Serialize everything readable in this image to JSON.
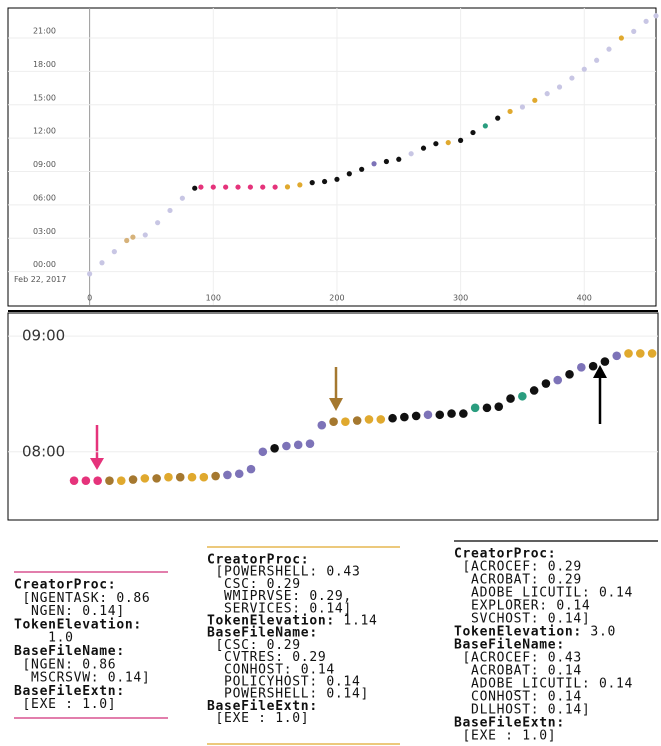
{
  "chart_data": [
    {
      "type": "scatter",
      "x": [
        0,
        10,
        20,
        30,
        35,
        45,
        55,
        65,
        75,
        85,
        90,
        100,
        110,
        120,
        130,
        140,
        150,
        160,
        170,
        180,
        190,
        200,
        210,
        220,
        230,
        240,
        250,
        260,
        270,
        280,
        290,
        300,
        310,
        320,
        330,
        340,
        350,
        360,
        370,
        380,
        390,
        400,
        410,
        420,
        430,
        440,
        450,
        458
      ],
      "values": [
        -0.2,
        0.8,
        1.8,
        2.8,
        3.1,
        3.3,
        4.4,
        5.5,
        6.6,
        7.5,
        7.6,
        7.6,
        7.6,
        7.6,
        7.6,
        7.6,
        7.6,
        7.62,
        7.8,
        8.0,
        8.1,
        8.3,
        8.8,
        9.2,
        9.7,
        9.9,
        10.1,
        10.6,
        11.1,
        11.5,
        11.6,
        11.8,
        12.5,
        13.1,
        13.8,
        14.4,
        14.8,
        15.4,
        16.0,
        16.6,
        17.4,
        18.2,
        19.0,
        20.0,
        21.0,
        21.6,
        22.5,
        23.0
      ],
      "colors": [
        "#c8c6e4",
        "#c8c6e4",
        "#c8c6e4",
        "#d6b27a",
        "#d6b27a",
        "#c8c6e4",
        "#c8c6e4",
        "#c8c6e4",
        "#c8c6e4",
        "#111111",
        "#e5337b",
        "#e5337b",
        "#e5337b",
        "#e5337b",
        "#e5337b",
        "#e5337b",
        "#e5337b",
        "#e0a92e",
        "#e0a92e",
        "#111111",
        "#111111",
        "#111111",
        "#111111",
        "#111111",
        "#7d73b8",
        "#111111",
        "#111111",
        "#c8c6e4",
        "#111111",
        "#111111",
        "#e0a92e",
        "#111111",
        "#111111",
        "#2a9d7f",
        "#111111",
        "#e0a92e",
        "#c8c6e4",
        "#e0a92e",
        "#c8c6e4",
        "#c8c6e4",
        "#c8c6e4",
        "#c8c6e4",
        "#c8c6e4",
        "#c8c6e4",
        "#e0a92e",
        "#c8c6e4",
        "#c8c6e4",
        "#c8c6e4"
      ],
      "xlim": [
        -66,
        458
      ],
      "ylim": [
        -3,
        23.7
      ],
      "xticks": [
        0,
        100,
        200,
        300,
        400
      ],
      "yticks": [
        {
          "value": 0,
          "label": "00:00"
        },
        {
          "value": 3,
          "label": "03:00"
        },
        {
          "value": 6,
          "label": "06:00"
        },
        {
          "value": 9,
          "label": "09:00"
        },
        {
          "value": 12,
          "label": "12:00"
        },
        {
          "value": 15,
          "label": "15:00"
        },
        {
          "value": 18,
          "label": "18:00"
        },
        {
          "value": 21,
          "label": "21:00"
        }
      ],
      "annotation": "Feb 22, 2017",
      "grid": true
    },
    {
      "type": "scatter",
      "x": [
        1,
        2,
        3,
        4,
        5,
        6,
        7,
        8,
        9,
        10,
        11,
        12,
        13,
        14,
        15,
        16,
        17,
        18,
        19,
        20,
        21,
        22,
        23,
        24,
        25,
        26,
        27,
        28,
        29,
        30,
        31,
        32,
        33,
        34,
        35,
        36,
        37,
        38,
        39,
        40,
        41,
        42,
        43,
        44,
        45,
        46,
        47,
        48,
        49,
        50
      ],
      "values": [
        7.75,
        7.75,
        7.75,
        7.75,
        7.75,
        7.76,
        7.77,
        7.77,
        7.78,
        7.78,
        7.78,
        7.78,
        7.79,
        7.8,
        7.81,
        7.85,
        8.0,
        8.03,
        8.05,
        8.06,
        8.07,
        8.23,
        8.26,
        8.26,
        8.27,
        8.28,
        8.28,
        8.29,
        8.3,
        8.31,
        8.32,
        8.32,
        8.33,
        8.33,
        8.38,
        8.38,
        8.39,
        8.46,
        8.48,
        8.53,
        8.59,
        8.62,
        8.67,
        8.73,
        8.74,
        8.78,
        8.83,
        8.85,
        8.85,
        8.85
      ],
      "colors": [
        "#e5337b",
        "#e5337b",
        "#e5337b",
        "#a5782f",
        "#e0a92e",
        "#a5782f",
        "#e0a92e",
        "#a5782f",
        "#e0a92e",
        "#a5782f",
        "#e0a92e",
        "#e0a92e",
        "#a5782f",
        "#7d73b8",
        "#7d73b8",
        "#7d73b8",
        "#7d73b8",
        "#111111",
        "#7d73b8",
        "#7d73b8",
        "#7d73b8",
        "#7d73b8",
        "#a5782f",
        "#e0a92e",
        "#a5782f",
        "#e0a92e",
        "#e0a92e",
        "#111111",
        "#111111",
        "#111111",
        "#7d73b8",
        "#111111",
        "#111111",
        "#111111",
        "#2a9d7f",
        "#111111",
        "#111111",
        "#111111",
        "#2a9d7f",
        "#111111",
        "#111111",
        "#7d73b8",
        "#111111",
        "#7d73b8",
        "#111111",
        "#111111",
        "#7d73b8",
        "#e0a92e",
        "#e0a92e",
        "#e0a92e"
      ],
      "xlim": [
        -4.6,
        50.5
      ],
      "ylim": [
        7.41,
        9.2
      ],
      "yticks": [
        {
          "value": 8,
          "label": "08:00"
        },
        {
          "value": 9,
          "label": "09:00"
        }
      ],
      "grid": true
    }
  ],
  "panels": [
    {
      "rule_color": "#d0307a",
      "fields": [
        {
          "name": "CreatorProc:",
          "values": [
            " [NGENTASK: 0.86",
            "  NGEN: 0.14]"
          ]
        },
        {
          "name": "TokenElevation:",
          "values": [
            "    1.0"
          ]
        },
        {
          "name": "BaseFileName:",
          "values": [
            " [NGEN: 0.86",
            "  MSCRSVW: 0.14]"
          ]
        },
        {
          "name": "BaseFileExtn:",
          "values": [
            " [EXE : 1.0]"
          ]
        }
      ]
    },
    {
      "rule_color": "#e0a92e",
      "fields": [
        {
          "name": "CreatorProc:",
          "values": [
            " [POWERSHELL: 0.43",
            "  CSC: 0.29",
            "  WMIPRVSE: 0.29,",
            "  SERVICES: 0.14]"
          ]
        },
        {
          "name": "TokenElevation:",
          "inline": true,
          "values": [
            " 1.14"
          ]
        },
        {
          "name": "BaseFileName:",
          "values": [
            " [CSC: 0.29",
            "  CVTRES: 0.29",
            "  CONHOST: 0.14",
            "  POLICYHOST: 0.14",
            "  POWERSHELL: 0.14]"
          ]
        },
        {
          "name": "BaseFileExtn:",
          "values": [
            " [EXE : 1.0]"
          ]
        }
      ]
    },
    {
      "rule_color": "#000000",
      "fields": [
        {
          "name": "CreatorProc:",
          "values": [
            " [ACROCEF: 0.29",
            "  ACROBAT: 0.29",
            "  ADOBE_LICUTIL: 0.14",
            "  EXPLORER: 0.14",
            "  SVCHOST: 0.14]"
          ]
        },
        {
          "name": "TokenElevation:",
          "inline": true,
          "values": [
            " 3.0"
          ]
        },
        {
          "name": "BaseFileName:",
          "values": [
            " [ACROCEF: 0.43",
            "  ACROBAT: 0.14",
            "  ADOBE_LICUTIL: 0.14",
            "  CONHOST: 0.14",
            "  DLLHOST: 0.14]"
          ]
        },
        {
          "name": "BaseFileExtn:",
          "values": [
            " [EXE : 1.0]"
          ]
        }
      ]
    }
  ]
}
